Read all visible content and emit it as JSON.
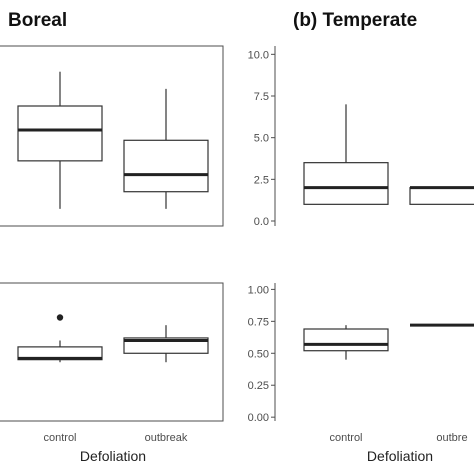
{
  "chart_data": [
    {
      "type": "boxplot",
      "title": "Boreal",
      "categories": [
        "control",
        "outbreak"
      ],
      "ylim": [
        0,
        10.5
      ],
      "ytick_labels": [],
      "boxes": [
        {
          "category": "control",
          "min": 1,
          "q1": 3.8,
          "median": 5.6,
          "q3": 7,
          "max": 9,
          "outliers": []
        },
        {
          "category": "outbreak",
          "min": 1,
          "q1": 2,
          "median": 3,
          "q3": 5,
          "max": 8,
          "outliers": []
        }
      ]
    },
    {
      "type": "boxplot",
      "title": "(b) Temperate",
      "categories": [
        "control",
        "outbreak"
      ],
      "ylim": [
        -0.3,
        10.5
      ],
      "ytick_labels": [
        "0.0",
        "2.5",
        "5.0",
        "7.5",
        "10.0"
      ],
      "boxes": [
        {
          "category": "control",
          "min": 1,
          "q1": 1,
          "median": 2,
          "q3": 3.5,
          "max": 7,
          "outliers": []
        },
        {
          "category": "outbreak",
          "min": 1,
          "q1": 1,
          "median": 2,
          "q3": 2,
          "max": 2,
          "outliers": []
        }
      ]
    },
    {
      "type": "boxplot",
      "title": "",
      "categories": [
        "control",
        "outbreak"
      ],
      "ylim": [
        -0.03,
        1.05
      ],
      "ytick_labels": [],
      "boxes": [
        {
          "category": "control",
          "min": 0.43,
          "q1": 0.45,
          "median": 0.46,
          "q3": 0.55,
          "max": 0.6,
          "outliers": [
            0.78
          ]
        },
        {
          "category": "outbreak",
          "min": 0.43,
          "q1": 0.5,
          "median": 0.6,
          "q3": 0.62,
          "max": 0.72,
          "outliers": []
        }
      ]
    },
    {
      "type": "boxplot",
      "title": "",
      "categories": [
        "control",
        "outbreak"
      ],
      "ylim": [
        -0.03,
        1.05
      ],
      "ytick_labels": [
        "0.00",
        "0.25",
        "0.50",
        "0.75",
        "1.00"
      ],
      "boxes": [
        {
          "category": "control",
          "min": 0.45,
          "q1": 0.52,
          "median": 0.57,
          "q3": 0.69,
          "max": 0.72,
          "outliers": []
        },
        {
          "category": "outbreak",
          "min": 0.72,
          "q1": 0.72,
          "median": 0.72,
          "q3": 0.72,
          "max": 0.72,
          "outliers": []
        }
      ]
    }
  ],
  "x_axis": {
    "tick_labels": [
      "control",
      "outbreak"
    ],
    "tick_labels_right_visible": [
      "control",
      "outbre"
    ],
    "title": "Defoliation"
  }
}
